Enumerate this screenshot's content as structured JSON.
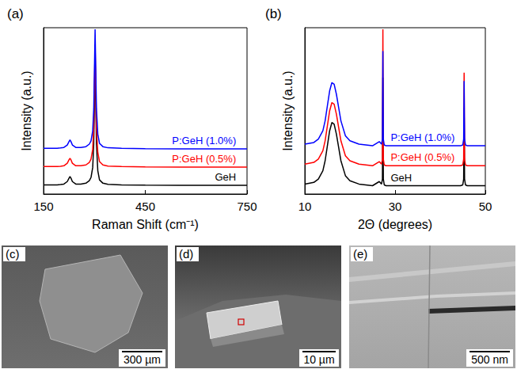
{
  "chart_data": [
    {
      "type": "line",
      "title": "(a)",
      "x_label": "Raman Shift (cm⁻¹)",
      "y_label": "Intensity (a.u.)",
      "xlim": [
        150,
        750
      ],
      "xticks": [
        150,
        450,
        750
      ],
      "ylim": [
        0,
        10
      ],
      "tick_labels": "x",
      "grid": false,
      "x": [
        150,
        170,
        190,
        200,
        210,
        220,
        225,
        228,
        231,
        235,
        245,
        260,
        275,
        285,
        290,
        295,
        298,
        300,
        302,
        304,
        306,
        310,
        315,
        325,
        340,
        380,
        450,
        550,
        650,
        750
      ],
      "series": [
        {
          "name": "GeH",
          "color": "#000000",
          "values": [
            0.55,
            0.55,
            0.55,
            0.57,
            0.6,
            0.75,
            0.95,
            1.05,
            0.95,
            0.75,
            0.6,
            0.6,
            0.65,
            0.8,
            1.0,
            1.6,
            3.0,
            5.5,
            8.3,
            5.6,
            3.0,
            1.4,
            0.85,
            0.65,
            0.58,
            0.55,
            0.53,
            0.52,
            0.52,
            0.52
          ]
        },
        {
          "name": "P:GeH (0.5%)",
          "color": "#ff0000",
          "values": [
            1.65,
            1.65,
            1.65,
            1.67,
            1.7,
            1.85,
            2.05,
            2.15,
            2.05,
            1.85,
            1.7,
            1.7,
            1.75,
            1.9,
            2.1,
            2.7,
            4.0,
            6.4,
            9.0,
            6.5,
            4.0,
            2.5,
            1.95,
            1.75,
            1.68,
            1.65,
            1.63,
            1.62,
            1.62,
            1.62
          ]
        },
        {
          "name": "P:GeH (1.0%)",
          "color": "#0000ff",
          "values": [
            2.75,
            2.75,
            2.75,
            2.77,
            2.8,
            2.95,
            3.15,
            3.25,
            3.15,
            2.95,
            2.8,
            2.8,
            2.85,
            3.0,
            3.2,
            3.8,
            5.1,
            7.4,
            9.9,
            7.5,
            5.1,
            3.6,
            3.05,
            2.85,
            2.78,
            2.75,
            2.73,
            2.72,
            2.72,
            2.72
          ]
        }
      ]
    },
    {
      "type": "line",
      "title": "(b)",
      "x_label": "2Θ (degrees)",
      "y_label": "Intensity (a.u.)",
      "xlim": [
        10,
        50
      ],
      "xticks": [
        10,
        30,
        50
      ],
      "ylim": [
        0,
        10
      ],
      "tick_labels": "x",
      "grid": false,
      "x": [
        10,
        12,
        13,
        14,
        14.5,
        15,
        15.5,
        16,
        16.5,
        17,
        17.5,
        18,
        19,
        20,
        22,
        25,
        26.5,
        27,
        27.2,
        27.3,
        27.4,
        27.6,
        28,
        30,
        35,
        40,
        44.5,
        45,
        45.2,
        45.3,
        45.4,
        45.6,
        46,
        48,
        50
      ],
      "series": [
        {
          "name": "GeH",
          "color": "#000000",
          "values": [
            0.6,
            0.7,
            0.9,
            1.4,
            2.0,
            2.9,
            3.8,
            4.3,
            4.2,
            3.6,
            2.8,
            2.0,
            1.1,
            0.8,
            0.6,
            0.5,
            0.75,
            0.6,
            0.9,
            7.0,
            0.9,
            0.55,
            0.5,
            0.5,
            0.5,
            0.5,
            0.5,
            0.55,
            0.9,
            5.2,
            0.9,
            0.55,
            0.5,
            0.5,
            0.5
          ]
        },
        {
          "name": "P:GeH (0.5%)",
          "color": "#ff0000",
          "values": [
            1.8,
            1.9,
            2.1,
            2.6,
            3.2,
            4.1,
            5.0,
            5.5,
            5.4,
            4.8,
            4.0,
            3.2,
            2.3,
            2.0,
            1.8,
            1.7,
            1.95,
            1.8,
            2.1,
            9.9,
            2.1,
            1.75,
            1.7,
            1.7,
            1.7,
            1.7,
            1.7,
            1.75,
            2.1,
            7.3,
            2.1,
            1.75,
            1.7,
            1.7,
            1.7
          ]
        },
        {
          "name": "P:GeH (1.0%)",
          "color": "#0000ff",
          "values": [
            3.0,
            3.1,
            3.3,
            3.8,
            4.4,
            5.3,
            6.2,
            6.7,
            6.6,
            6.0,
            5.2,
            4.4,
            3.5,
            3.2,
            3.0,
            2.9,
            3.15,
            3.0,
            3.3,
            8.6,
            3.3,
            2.95,
            2.9,
            2.9,
            2.9,
            2.9,
            2.9,
            2.95,
            3.3,
            6.8,
            3.3,
            2.95,
            2.9,
            2.9,
            2.9
          ]
        }
      ]
    },
    {
      "type": "image",
      "title": "(c)",
      "annotations": [
        "300 µm"
      ]
    },
    {
      "type": "image",
      "title": "(d)",
      "annotations": [
        "10 µm"
      ]
    },
    {
      "type": "image",
      "title": "(e)",
      "annotations": [
        "500 nm"
      ]
    }
  ]
}
